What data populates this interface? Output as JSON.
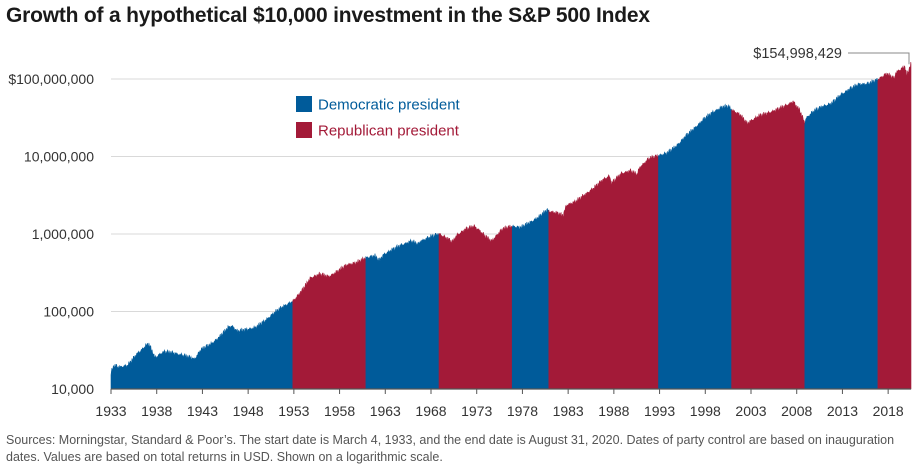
{
  "title": "Growth of a hypothetical $10,000 investment in the S&P 500 Index",
  "source_note": "Sources: Morningstar, Standard & Poor’s. The start date is March 4, 1933, and the end date is August 31, 2020. Dates of party control are based on inauguration dates. Values are based on total returns in USD. Shown on a logarithmic scale.",
  "colors": {
    "democratic": "#005b9a",
    "republican": "#a31a38"
  },
  "chart_data": {
    "type": "area",
    "title": "Growth of a hypothetical $10,000 investment in the S&P 500 Index",
    "scale": "log",
    "ylim": [
      10000,
      200000000
    ],
    "xlim": [
      1933.17,
      2020.67
    ],
    "y_ticks": [
      10000,
      100000,
      1000000,
      10000000,
      100000000
    ],
    "y_tick_labels": [
      "10,000",
      "100,000",
      "1,000,000",
      "10,000,000",
      "$100,000,000"
    ],
    "x_ticks": [
      1933,
      1938,
      1943,
      1948,
      1953,
      1958,
      1963,
      1968,
      1973,
      1978,
      1983,
      1988,
      1993,
      1998,
      2003,
      2008,
      2013,
      2018
    ],
    "legend": [
      {
        "label": "Democratic president",
        "party": "democratic"
      },
      {
        "label": "Republican president",
        "party": "republican"
      }
    ],
    "legend_placement": "top-left",
    "end_label": "$154,998,429",
    "end_value": 154998429,
    "periods": [
      {
        "party": "democratic",
        "start": 1933.17,
        "end": 1953.05
      },
      {
        "party": "republican",
        "start": 1953.05,
        "end": 1961.05
      },
      {
        "party": "democratic",
        "start": 1961.05,
        "end": 1969.05
      },
      {
        "party": "republican",
        "start": 1969.05,
        "end": 1977.05
      },
      {
        "party": "democratic",
        "start": 1977.05,
        "end": 1981.05
      },
      {
        "party": "republican",
        "start": 1981.05,
        "end": 1993.05
      },
      {
        "party": "democratic",
        "start": 1993.05,
        "end": 2001.05
      },
      {
        "party": "republican",
        "start": 2001.05,
        "end": 2009.05
      },
      {
        "party": "democratic",
        "start": 2009.05,
        "end": 2017.05
      },
      {
        "party": "republican",
        "start": 2017.05,
        "end": 2020.67
      }
    ],
    "series": [
      {
        "name": "S&P 500 growth of $10,000",
        "x": [
          1933.17,
          1933.5,
          1934.0,
          1935.0,
          1936.0,
          1937.0,
          1937.3,
          1938.0,
          1938.5,
          1939.0,
          1940.0,
          1941.0,
          1942.0,
          1942.3,
          1943.0,
          1944.0,
          1945.0,
          1946.0,
          1946.4,
          1947.0,
          1948.0,
          1949.0,
          1950.0,
          1951.0,
          1952.0,
          1953.05,
          1954.0,
          1955.0,
          1956.0,
          1957.0,
          1958.0,
          1959.0,
          1960.0,
          1961.05,
          1962.0,
          1962.5,
          1963.0,
          1964.0,
          1965.0,
          1966.0,
          1966.8,
          1967.0,
          1968.0,
          1969.05,
          1970.0,
          1970.5,
          1971.0,
          1972.0,
          1972.9,
          1973.5,
          1974.0,
          1974.8,
          1975.5,
          1976.0,
          1977.05,
          1978.0,
          1979.0,
          1980.0,
          1980.9,
          1981.05,
          1982.0,
          1982.6,
          1983.0,
          1984.0,
          1985.0,
          1986.0,
          1987.0,
          1987.7,
          1987.9,
          1988.0,
          1989.0,
          1990.0,
          1990.7,
          1991.0,
          1992.0,
          1993.05,
          1994.0,
          1995.0,
          1996.0,
          1997.0,
          1998.0,
          1999.0,
          2000.0,
          2000.7,
          2001.05,
          2002.0,
          2002.8,
          2003.0,
          2004.0,
          2005.0,
          2006.0,
          2007.0,
          2007.8,
          2008.0,
          2008.5,
          2009.05,
          2009.2,
          2010.0,
          2011.0,
          2012.0,
          2013.0,
          2014.0,
          2015.0,
          2016.0,
          2017.05,
          2018.0,
          2018.9,
          2019.0,
          2020.0,
          2020.2,
          2020.67
        ],
        "y": [
          16000,
          20000,
          19000,
          20000,
          28000,
          36000,
          38000,
          25000,
          28000,
          30000,
          29000,
          27000,
          25000,
          24000,
          32000,
          37000,
          46000,
          62000,
          65000,
          55000,
          58000,
          62000,
          75000,
          95000,
          115000,
          135000,
          180000,
          270000,
          300000,
          280000,
          330000,
          400000,
          420000,
          490000,
          520000,
          450000,
          540000,
          630000,
          720000,
          800000,
          730000,
          800000,
          900000,
          1000000,
          860000,
          780000,
          960000,
          1150000,
          1250000,
          1100000,
          950000,
          800000,
          1000000,
          1150000,
          1250000,
          1200000,
          1400000,
          1650000,
          2050000,
          1950000,
          1850000,
          1700000,
          2350000,
          2600000,
          3200000,
          3900000,
          5000000,
          5600000,
          4400000,
          4600000,
          6000000,
          6500000,
          5800000,
          7200000,
          9300000,
          10200000,
          11000000,
          13500000,
          18000000,
          23000000,
          30000000,
          37000000,
          43000000,
          44000000,
          40000000,
          34000000,
          26000000,
          28000000,
          33000000,
          36000000,
          40000000,
          45000000,
          51000000,
          46000000,
          39000000,
          27000000,
          31000000,
          38000000,
          44000000,
          48000000,
          62000000,
          74000000,
          85000000,
          86000000,
          98000000,
          116000000,
          100000000,
          120000000,
          145000000,
          110000000,
          155000000
        ]
      }
    ]
  }
}
